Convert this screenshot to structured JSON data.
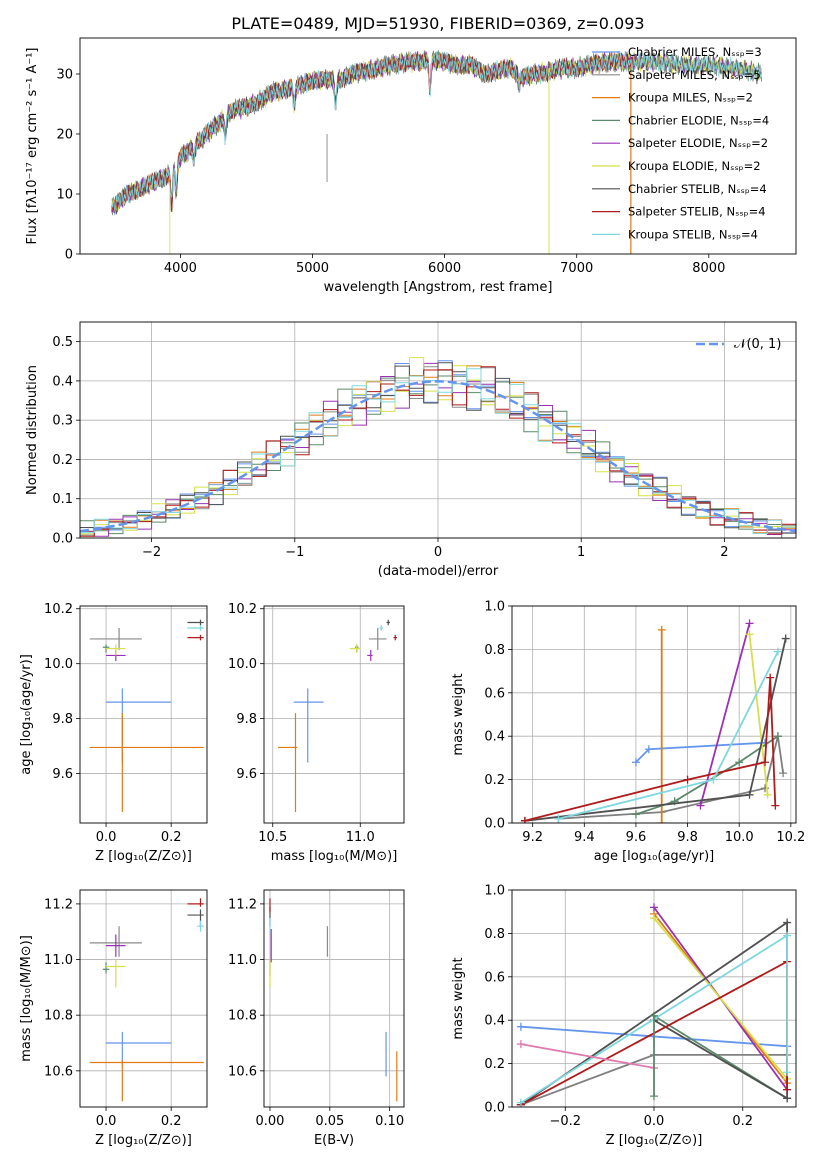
{
  "figure": {
    "title": "PLATE=0489, MJD=51930, FIBERID=0369, z=0.093"
  },
  "series_styles": [
    {
      "name": "Chabrier MILES",
      "color": "#6495ed"
    },
    {
      "name": "Salpeter MILES",
      "color": "#8b8b8b"
    },
    {
      "name": "Kroupa MILES",
      "color": "#e07b14"
    },
    {
      "name": "Chabrier ELODIE",
      "color": "#5a8a6a"
    },
    {
      "name": "Salpeter ELODIE",
      "color": "#9b30b5"
    },
    {
      "name": "Kroupa ELODIE",
      "color": "#d6e04a"
    },
    {
      "name": "Chabrier STELIB",
      "color": "#505050"
    },
    {
      "name": "Salpeter STELIB",
      "color": "#b01a1a"
    },
    {
      "name": "Kroupa STELIB",
      "color": "#7fd8e0"
    }
  ],
  "chart_data": [
    {
      "id": "spectrum",
      "type": "line",
      "xlabel": "wavelength [Angstrom, rest frame]",
      "ylabel": "Flux [fλ10⁻¹⁷ erg cm⁻² s⁻¹ A⁻¹]",
      "xlim": [
        3240,
        8660
      ],
      "ylim": [
        0,
        36
      ],
      "xticks": [
        4000,
        5000,
        6000,
        7000,
        8000
      ],
      "yticks": [
        0,
        10,
        20,
        30
      ],
      "grid": false,
      "legend_position": "right",
      "legend": [
        "Chabrier MILES, Nₛₛₚ=3",
        "Salpeter MILES, Nₛₛₚ=5",
        "Kroupa MILES, Nₛₛₚ=2",
        "Chabrier ELODIE, Nₛₛₚ=4",
        "Salpeter ELODIE, Nₛₛₚ=2",
        "Kroupa ELODIE, Nₛₛₚ=2",
        "Chabrier STELIB, Nₛₛₚ=4",
        "Salpeter STELIB, Nₛₛₚ=4",
        "Kroupa STELIB, Nₛₛₚ=4"
      ],
      "continuum": [
        [
          3500,
          8
        ],
        [
          3600,
          10
        ],
        [
          3700,
          11
        ],
        [
          3800,
          12
        ],
        [
          3900,
          13
        ],
        [
          4000,
          16
        ],
        [
          4100,
          18
        ],
        [
          4200,
          20
        ],
        [
          4300,
          22
        ],
        [
          4400,
          24
        ],
        [
          4500,
          24.5
        ],
        [
          4600,
          25.5
        ],
        [
          4700,
          27
        ],
        [
          4800,
          27.5
        ],
        [
          4900,
          28
        ],
        [
          5000,
          29
        ],
        [
          5100,
          29
        ],
        [
          5200,
          29
        ],
        [
          5300,
          30
        ],
        [
          5400,
          30.5
        ],
        [
          5500,
          31
        ],
        [
          5600,
          31.5
        ],
        [
          5700,
          32
        ],
        [
          5800,
          32
        ],
        [
          5900,
          32.5
        ],
        [
          6000,
          32
        ],
        [
          6100,
          31.5
        ],
        [
          6200,
          31.5
        ],
        [
          6300,
          30
        ],
        [
          6400,
          30.5
        ],
        [
          6500,
          31
        ],
        [
          6600,
          29.5
        ],
        [
          6700,
          30
        ],
        [
          6800,
          30.5
        ],
        [
          6900,
          31
        ],
        [
          7000,
          31
        ],
        [
          7100,
          31.5
        ],
        [
          7200,
          32
        ],
        [
          7300,
          32
        ],
        [
          7400,
          32
        ],
        [
          7500,
          32
        ],
        [
          7600,
          32
        ],
        [
          7800,
          31.5
        ],
        [
          8000,
          31.5
        ],
        [
          8200,
          31
        ],
        [
          8400,
          30
        ]
      ],
      "series_ranges": [
        [
          3480,
          7430
        ],
        [
          3480,
          8400
        ],
        [
          3480,
          7430
        ],
        [
          3480,
          8400
        ],
        [
          3480,
          8400
        ],
        [
          3480,
          8400
        ],
        [
          3480,
          8400
        ],
        [
          3480,
          7430
        ],
        [
          3480,
          8400
        ]
      ]
    },
    {
      "id": "residuals",
      "type": "step-histogram",
      "xlabel": "(data-model)/error",
      "ylabel": "Normed distribution",
      "xlim": [
        -2.5,
        2.5
      ],
      "ylim": [
        0,
        0.55
      ],
      "xticks": [
        -2,
        -1,
        0,
        1,
        2
      ],
      "yticks": [
        0.0,
        0.1,
        0.2,
        0.3,
        0.4,
        0.5
      ],
      "grid": true,
      "legend_position": "upper right",
      "reference_curve": {
        "label": "𝒩(0, 1)",
        "mean": 0,
        "sigma": 1,
        "style": "dashed"
      },
      "bin_width": 0.1
    },
    {
      "id": "age-vs-Z",
      "type": "errorbar",
      "xlabel": "Z [log₁₀(Z/Z⊙)]",
      "ylabel": "age  [log₁₀(age/yr)]",
      "xlim": [
        -0.08,
        0.31
      ],
      "ylim": [
        9.42,
        10.21
      ],
      "xticks": [
        0.0,
        0.2
      ],
      "yticks": [
        9.6,
        9.8,
        10.0,
        10.2
      ],
      "grid": true,
      "points": [
        {
          "x": 0.05,
          "xlo": 0.0,
          "xhi": 0.2,
          "y": 9.86,
          "ylo": 9.64,
          "yhi": 9.91
        },
        {
          "x": 0.04,
          "xlo": -0.05,
          "xhi": 0.11,
          "y": 10.09,
          "ylo": 10.05,
          "yhi": 10.13
        },
        {
          "x": 0.05,
          "xlo": -0.05,
          "xhi": 0.3,
          "y": 9.695,
          "ylo": 9.46,
          "yhi": 9.82
        },
        {
          "x": 0.0,
          "xlo": -0.01,
          "xhi": 0.01,
          "y": 10.06,
          "ylo": 10.04,
          "yhi": 10.07
        },
        {
          "x": 0.03,
          "xlo": 0.0,
          "xhi": 0.06,
          "y": 10.03,
          "ylo": 10.01,
          "yhi": 10.05
        },
        {
          "x": 0.03,
          "xlo": 0.0,
          "xhi": 0.06,
          "y": 10.055,
          "ylo": 10.03,
          "yhi": 10.07
        },
        {
          "x": 0.29,
          "xlo": 0.25,
          "xhi": 0.3,
          "y": 10.15,
          "ylo": 10.14,
          "yhi": 10.16
        },
        {
          "x": 0.29,
          "xlo": 0.25,
          "xhi": 0.3,
          "y": 10.095,
          "ylo": 10.085,
          "yhi": 10.105
        },
        {
          "x": 0.29,
          "xlo": 0.25,
          "xhi": 0.3,
          "y": 10.13,
          "ylo": 10.12,
          "yhi": 10.14
        }
      ]
    },
    {
      "id": "age-vs-mass",
      "type": "errorbar",
      "xlabel": "mass [log₁₀(M/M⊙)]",
      "ylabel": "",
      "xlim": [
        10.45,
        11.25
      ],
      "ylim": [
        9.42,
        10.21
      ],
      "xticks": [
        10.5,
        11.0
      ],
      "yticks": [
        9.6,
        9.8,
        10.0,
        10.2
      ],
      "grid": true,
      "points": [
        {
          "x": 10.7,
          "xlo": 10.62,
          "xhi": 10.79,
          "y": 9.86,
          "ylo": 9.64,
          "yhi": 9.91
        },
        {
          "x": 11.1,
          "xlo": 11.05,
          "xhi": 11.15,
          "y": 10.09,
          "ylo": 10.05,
          "yhi": 10.13
        },
        {
          "x": 10.63,
          "xlo": 10.53,
          "xhi": 10.64,
          "y": 9.695,
          "ylo": 9.46,
          "yhi": 9.82
        },
        {
          "x": 10.98,
          "xlo": 10.97,
          "xhi": 10.99,
          "y": 10.06,
          "ylo": 10.04,
          "yhi": 10.07
        },
        {
          "x": 11.06,
          "xlo": 11.04,
          "xhi": 11.07,
          "y": 10.03,
          "ylo": 10.01,
          "yhi": 10.05
        },
        {
          "x": 10.98,
          "xlo": 10.94,
          "xhi": 11.0,
          "y": 10.055,
          "ylo": 10.04,
          "yhi": 10.07
        },
        {
          "x": 11.16,
          "xlo": 11.15,
          "xhi": 11.17,
          "y": 10.15,
          "ylo": 10.14,
          "yhi": 10.16
        },
        {
          "x": 11.2,
          "xlo": 11.19,
          "xhi": 11.21,
          "y": 10.095,
          "ylo": 10.085,
          "yhi": 10.105
        },
        {
          "x": 11.12,
          "xlo": 11.11,
          "xhi": 11.13,
          "y": 10.13,
          "ylo": 10.12,
          "yhi": 10.14
        }
      ]
    },
    {
      "id": "weight-vs-age",
      "type": "line",
      "xlabel": "age  [log₁₀(age/yr)]",
      "ylabel": "mass weight",
      "xlim": [
        9.12,
        10.22
      ],
      "ylim": [
        0,
        1
      ],
      "xticks": [
        9.2,
        9.4,
        9.6,
        9.8,
        10.0,
        10.2
      ],
      "yticks": [
        0.0,
        0.2,
        0.4,
        0.6,
        0.8,
        1.0
      ],
      "grid": true,
      "series": [
        {
          "points": [
            [
              9.6,
              0.28
            ],
            [
              9.65,
              0.34
            ],
            [
              10.1,
              0.37
            ]
          ]
        },
        {
          "points": [
            [
              9.3,
              0.02
            ],
            [
              9.7,
              0.05
            ],
            [
              10.1,
              0.16
            ],
            [
              10.15,
              0.4
            ],
            [
              10.17,
              0.23
            ]
          ]
        },
        {
          "points": [
            [
              9.7,
              0.0
            ],
            [
              9.7,
              0.89
            ]
          ]
        },
        {
          "points": [
            [
              9.6,
              0.04
            ],
            [
              9.75,
              0.1
            ],
            [
              10.0,
              0.28
            ],
            [
              10.15,
              0.4
            ]
          ]
        },
        {
          "points": [
            [
              9.85,
              0.08
            ],
            [
              10.04,
              0.92
            ]
          ]
        },
        {
          "points": [
            [
              10.04,
              0.87
            ],
            [
              10.11,
              0.13
            ]
          ]
        },
        {
          "points": [
            [
              9.17,
              0.01
            ],
            [
              10.04,
              0.13
            ],
            [
              10.18,
              0.85
            ]
          ]
        },
        {
          "points": [
            [
              9.17,
              0.01
            ],
            [
              9.8,
              0.2
            ],
            [
              10.1,
              0.28
            ],
            [
              10.12,
              0.67
            ],
            [
              10.14,
              0.08
            ]
          ]
        },
        {
          "points": [
            [
              9.3,
              0.02
            ],
            [
              9.9,
              0.2
            ],
            [
              10.15,
              0.79
            ]
          ]
        }
      ]
    },
    {
      "id": "mass-vs-Z",
      "type": "errorbar",
      "xlabel": "Z [log₁₀(Z/Z⊙)]",
      "ylabel": "mass [log₁₀(M/M⊙)]",
      "xlim": [
        -0.08,
        0.31
      ],
      "ylim": [
        10.47,
        11.25
      ],
      "xticks": [
        0.0,
        0.2
      ],
      "yticks": [
        10.6,
        10.8,
        11.0,
        11.2
      ],
      "grid": true,
      "points": [
        {
          "x": 0.05,
          "xlo": 0.0,
          "xhi": 0.2,
          "y": 10.7,
          "ylo": 10.62,
          "yhi": 10.74
        },
        {
          "x": 0.04,
          "xlo": -0.05,
          "xhi": 0.11,
          "y": 11.06,
          "ylo": 11.01,
          "yhi": 11.12
        },
        {
          "x": 0.05,
          "xlo": -0.05,
          "xhi": 0.3,
          "y": 10.63,
          "ylo": 10.49,
          "yhi": 10.64
        },
        {
          "x": 0.0,
          "xlo": -0.01,
          "xhi": 0.01,
          "y": 10.965,
          "ylo": 10.95,
          "yhi": 10.99
        },
        {
          "x": 0.03,
          "xlo": 0.0,
          "xhi": 0.06,
          "y": 11.05,
          "ylo": 11.01,
          "yhi": 11.09
        },
        {
          "x": 0.03,
          "xlo": 0.0,
          "xhi": 0.06,
          "y": 10.975,
          "ylo": 10.9,
          "yhi": 11.0
        },
        {
          "x": 0.29,
          "xlo": 0.25,
          "xhi": 0.3,
          "y": 11.16,
          "ylo": 11.12,
          "yhi": 11.18
        },
        {
          "x": 0.29,
          "xlo": 0.25,
          "xhi": 0.3,
          "y": 11.2,
          "ylo": 11.19,
          "yhi": 11.22
        },
        {
          "x": 0.29,
          "xlo": 0.28,
          "xhi": 0.3,
          "y": 11.12,
          "ylo": 11.1,
          "yhi": 11.14
        }
      ]
    },
    {
      "id": "mass-vs-EBV",
      "type": "errorbar",
      "xlabel": "E(B-V)",
      "ylabel": "",
      "xlim": [
        -0.005,
        0.112
      ],
      "ylim": [
        10.47,
        11.25
      ],
      "xticks": [
        0.0,
        0.05,
        0.1
      ],
      "yticks": [
        10.6,
        10.8,
        11.0,
        11.2
      ],
      "grid": true,
      "points": [
        {
          "x": 0.097,
          "xlo": 0.097,
          "xhi": 0.097,
          "y": 10.66,
          "ylo": 10.58,
          "yhi": 10.74
        },
        {
          "x": 0.048,
          "xlo": 0.048,
          "xhi": 0.048,
          "y": 11.06,
          "ylo": 11.01,
          "yhi": 11.12
        },
        {
          "x": 0.106,
          "xlo": 0.106,
          "xhi": 0.106,
          "y": 10.57,
          "ylo": 10.49,
          "yhi": 10.67
        },
        {
          "x": 0.0,
          "xlo": 0.0,
          "xhi": 0.0,
          "y": 10.97,
          "ylo": 10.94,
          "yhi": 11.0
        },
        {
          "x": 0.001,
          "xlo": 0.001,
          "xhi": 0.001,
          "y": 11.05,
          "ylo": 10.99,
          "yhi": 11.11
        },
        {
          "x": 0.0,
          "xlo": 0.0,
          "xhi": 0.0,
          "y": 10.95,
          "ylo": 10.9,
          "yhi": 11.0
        },
        {
          "x": 0.0,
          "xlo": 0.0,
          "xhi": 0.0,
          "y": 11.16,
          "ylo": 11.12,
          "yhi": 11.19
        },
        {
          "x": 0.0,
          "xlo": 0.0,
          "xhi": 0.0,
          "y": 11.19,
          "ylo": 11.17,
          "yhi": 11.22
        },
        {
          "x": 0.0,
          "xlo": 0.0,
          "xhi": 0.0,
          "y": 11.12,
          "ylo": 11.09,
          "yhi": 11.15
        }
      ]
    },
    {
      "id": "weight-vs-Z",
      "type": "line",
      "xlabel": "Z [log₁₀(Z/Z⊙)]",
      "ylabel": "mass weight",
      "xlim": [
        -0.32,
        0.32
      ],
      "ylim": [
        0,
        1
      ],
      "xticks": [
        -0.2,
        0.0,
        0.2
      ],
      "yticks": [
        0.0,
        0.2,
        0.4,
        0.6,
        0.8,
        1.0
      ],
      "grid": true,
      "series": [
        {
          "points": [
            [
              -0.3,
              0.37
            ],
            [
              0.3,
              0.28
            ]
          ]
        },
        {
          "points": [
            [
              -0.3,
              0.01
            ],
            [
              0.0,
              0.24
            ],
            [
              0.3,
              0.24
            ]
          ]
        },
        {
          "points": [
            [
              0.0,
              0.89
            ],
            [
              0.3,
              0.11
            ]
          ]
        },
        {
          "points": [
            [
              0.0,
              0.42
            ],
            [
              0.3,
              0.04
            ]
          ]
        },
        {
          "points": [
            [
              0.0,
              0.92
            ],
            [
              0.3,
              0.08
            ]
          ]
        },
        {
          "points": [
            [
              0.0,
              0.87
            ],
            [
              0.3,
              0.13
            ]
          ]
        },
        {
          "points": [
            [
              -0.3,
              0.01
            ],
            [
              0.3,
              0.85
            ],
            [
              0.3,
              0.04
            ],
            [
              0.0,
              0.4
            ]
          ]
        },
        {
          "points": [
            [
              -0.3,
              0.01
            ],
            [
              0.3,
              0.67
            ],
            [
              0.3,
              0.08
            ]
          ]
        },
        {
          "points": [
            [
              -0.3,
              0.02
            ],
            [
              0.3,
              0.79
            ],
            [
              0.3,
              0.16
            ]
          ]
        },
        {
          "points": [
            [
              -0.3,
              0.29
            ],
            [
              0.0,
              0.18
            ]
          ]
        },
        {
          "points": [
            [
              0.0,
              0.05
            ],
            [
              0.0,
              0.42
            ]
          ]
        }
      ]
    }
  ]
}
